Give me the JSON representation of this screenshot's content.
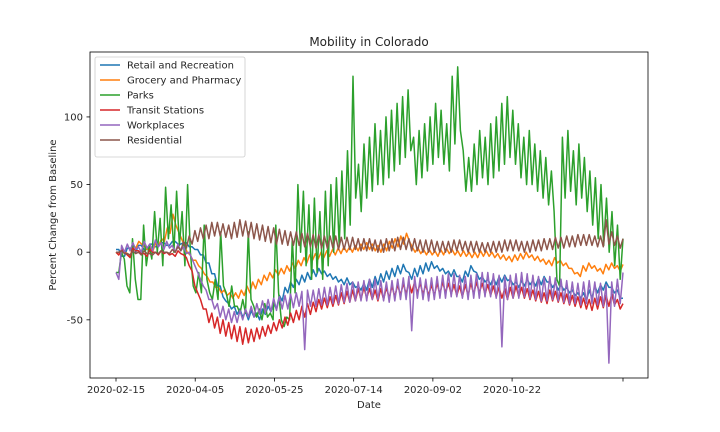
{
  "chart_data": {
    "type": "line",
    "title": "Mobility in Colorado",
    "xlabel": "Date",
    "ylabel": "Percent Change from Baseline",
    "x_start": "2020-02-15",
    "x_end": "2020-12-31",
    "x_ticks": [
      "2020-02-15",
      "2020-04-05",
      "2020-05-25",
      "2020-07-14",
      "2020-09-02",
      "2020-10-22",
      ""
    ],
    "ylim": [
      -93,
      148
    ],
    "y_ticks": [
      -50,
      0,
      50,
      100
    ],
    "grid": false,
    "legend_position": "upper-left",
    "series": [
      {
        "name": "Retail and Recreation",
        "color": "#1f77b4",
        "values": [
          2,
          -3,
          3,
          0,
          5,
          2,
          6,
          4,
          7,
          5,
          8,
          6,
          7,
          4,
          2,
          -2,
          -8,
          -16,
          -25,
          -33,
          -38,
          -40,
          -42,
          -44,
          -43,
          -45,
          -42,
          -40,
          -38,
          -32,
          -26,
          -22,
          -20,
          -17,
          -15,
          -13,
          -12,
          -14,
          -16,
          -18,
          -20,
          -19,
          -22,
          -25,
          -23,
          -20,
          -18,
          -16,
          -14,
          -12,
          -10,
          -9,
          -15,
          -12,
          -10,
          -8,
          -7,
          -10,
          -12,
          -14,
          -13,
          -18,
          -14,
          -10,
          -15,
          -18,
          -20,
          -19,
          -18,
          -17,
          -20,
          -22,
          -21,
          -20,
          -21,
          -19,
          -18,
          -22,
          -23,
          -24,
          -26,
          -28,
          -30,
          -30,
          -28,
          -25,
          -24,
          -22,
          -26,
          -28,
          -34
        ],
        "lows": [
          2,
          -3,
          3,
          0,
          5,
          2,
          6,
          4,
          7,
          5,
          8,
          6,
          7,
          4,
          2,
          -2,
          -8,
          -16,
          -25,
          -36,
          -42,
          -46,
          -48,
          -50,
          -48,
          -50,
          -46,
          -44,
          -42,
          -36,
          -30,
          -26,
          -24,
          -22,
          -20,
          -18,
          -16,
          -18,
          -20,
          -22,
          -24,
          -24,
          -26,
          -28,
          -28,
          -26,
          -24,
          -22,
          -20,
          -18,
          -16,
          -14,
          -20,
          -18,
          -16,
          -14,
          -12,
          -14,
          -16,
          -18,
          -18,
          -22,
          -18,
          -14,
          -20,
          -22,
          -24,
          -24,
          -22,
          -21,
          -24,
          -26,
          -25,
          -24,
          -25,
          -24,
          -22,
          -26,
          -28,
          -28,
          -30,
          -32,
          -34,
          -36,
          -34,
          -30,
          -28,
          -26,
          -30,
          -34,
          -40
        ]
      },
      {
        "name": "Grocery and Pharmacy",
        "color": "#ff7f0e",
        "values": [
          0,
          2,
          -1,
          5,
          8,
          4,
          3,
          7,
          10,
          18,
          28,
          15,
          5,
          -2,
          -6,
          -12,
          -18,
          -22,
          -26,
          -28,
          -30,
          -30,
          -28,
          -25,
          -22,
          -20,
          -17,
          -15,
          -13,
          -12,
          -10,
          -8,
          -6,
          -4,
          -2,
          -1,
          0,
          1,
          2,
          3,
          4,
          4,
          5,
          6,
          7,
          6,
          5,
          6,
          8,
          10,
          12,
          14,
          4,
          3,
          2,
          2,
          1,
          2,
          3,
          2,
          1,
          1,
          0,
          0,
          1,
          1,
          0,
          -1,
          -2,
          -3,
          -2,
          -1,
          0,
          -2,
          -3,
          -5,
          -6,
          -4,
          -6,
          -8,
          -12,
          -15,
          -10,
          -8,
          -10,
          -12,
          -9,
          -8,
          -10,
          -9
        ],
        "lows": [
          -2,
          0,
          -3,
          3,
          6,
          2,
          1,
          5,
          8,
          14,
          20,
          10,
          0,
          -6,
          -10,
          -16,
          -22,
          -26,
          -30,
          -32,
          -34,
          -34,
          -32,
          -30,
          -27,
          -24,
          -21,
          -19,
          -17,
          -16,
          -14,
          -12,
          -10,
          -8,
          -6,
          -5,
          -4,
          -3,
          -2,
          -1,
          0,
          0,
          1,
          2,
          2,
          1,
          0,
          1,
          3,
          4,
          6,
          8,
          0,
          -1,
          -2,
          -2,
          -3,
          -2,
          -1,
          -2,
          -3,
          -3,
          -4,
          -4,
          -3,
          -3,
          -4,
          -5,
          -6,
          -7,
          -6,
          -5,
          -4,
          -6,
          -7,
          -9,
          -10,
          -8,
          -10,
          -12,
          -16,
          -18,
          -14,
          -12,
          -14,
          -16,
          -13,
          -12,
          -14,
          -12
        ]
      },
      {
        "name": "Parks",
        "color": "#2ca02c",
        "values": [
          -15,
          0,
          -25,
          10,
          -35,
          20,
          5,
          30,
          25,
          48,
          35,
          45,
          30,
          50,
          -25,
          -15,
          20,
          -30,
          -20,
          15,
          -30,
          -25,
          -40,
          -35,
          15,
          -40,
          -42,
          -38,
          -45,
          20,
          -50,
          -48,
          10,
          50,
          45,
          35,
          40,
          30,
          45,
          50,
          55,
          60,
          75,
          130,
          65,
          80,
          85,
          95,
          90,
          100,
          105,
          110,
          115,
          120,
          85,
          90,
          95,
          100,
          110,
          105,
          95,
          130,
          137,
          75,
          70,
          80,
          90,
          85,
          95,
          100,
          110,
          115,
          105,
          95,
          85,
          90,
          80,
          75,
          70,
          60,
          -20,
          85,
          90,
          75,
          80,
          70,
          60,
          55,
          50,
          40,
          30,
          20,
          10
        ],
        "lows": [
          -15,
          -5,
          -30,
          -20,
          -35,
          -10,
          -5,
          0,
          -10,
          10,
          0,
          5,
          -10,
          0,
          -30,
          -30,
          -20,
          -35,
          -35,
          -25,
          -40,
          -40,
          -45,
          -45,
          -35,
          -48,
          -50,
          -48,
          -50,
          -30,
          -55,
          -50,
          -30,
          0,
          -10,
          -20,
          -15,
          -20,
          -10,
          0,
          5,
          10,
          20,
          40,
          30,
          40,
          45,
          50,
          50,
          55,
          60,
          65,
          70,
          75,
          50,
          55,
          60,
          65,
          70,
          65,
          60,
          80,
          90,
          45,
          45,
          50,
          55,
          50,
          55,
          60,
          65,
          70,
          65,
          55,
          50,
          50,
          45,
          40,
          35,
          30,
          -25,
          40,
          45,
          35,
          40,
          30,
          20,
          10,
          5,
          0,
          -10,
          -20,
          -30
        ]
      },
      {
        "name": "Transit Stations",
        "color": "#d62728",
        "values": [
          0,
          2,
          -2,
          3,
          1,
          -1,
          2,
          0,
          1,
          0,
          -1,
          1,
          -2,
          -10,
          -25,
          -35,
          -42,
          -45,
          -48,
          -50,
          -52,
          -54,
          -55,
          -56,
          -57,
          -56,
          -55,
          -54,
          -52,
          -50,
          -48,
          -45,
          -43,
          -40,
          -38,
          -37,
          -35,
          -34,
          -33,
          -32,
          -30,
          -29,
          -28,
          -27,
          -26,
          -27,
          -28,
          -27,
          -26,
          -25,
          -24,
          -23,
          -22,
          -22,
          -23,
          -24,
          -24,
          -23,
          -22,
          -23,
          -24,
          -25,
          -24,
          -23,
          -22,
          -23,
          -24,
          -25,
          -26,
          -27,
          -26,
          -25,
          -26,
          -27,
          -28,
          -29,
          -30,
          -28,
          -29,
          -30,
          -31,
          -32,
          -33,
          -34,
          -35,
          -34,
          -33,
          -32,
          -31,
          -35,
          -38
        ],
        "lows": [
          -2,
          0,
          -4,
          1,
          -1,
          -3,
          0,
          -2,
          -1,
          -2,
          -3,
          -1,
          -4,
          -14,
          -30,
          -42,
          -52,
          -56,
          -60,
          -62,
          -64,
          -66,
          -68,
          -67,
          -66,
          -64,
          -62,
          -60,
          -58,
          -56,
          -54,
          -52,
          -50,
          -48,
          -46,
          -44,
          -42,
          -41,
          -40,
          -39,
          -38,
          -37,
          -36,
          -35,
          -34,
          -35,
          -36,
          -35,
          -34,
          -33,
          -32,
          -31,
          -30,
          -30,
          -31,
          -32,
          -32,
          -31,
          -30,
          -31,
          -32,
          -33,
          -32,
          -31,
          -30,
          -31,
          -32,
          -33,
          -34,
          -35,
          -34,
          -33,
          -34,
          -35,
          -36,
          -37,
          -38,
          -36,
          -37,
          -38,
          -39,
          -40,
          -41,
          -42,
          -43,
          -42,
          -41,
          -40,
          -39,
          -42,
          -44
        ]
      },
      {
        "name": "Workplaces",
        "color": "#9467bd",
        "values": [
          -15,
          5,
          6,
          7,
          4,
          8,
          6,
          9,
          7,
          8,
          5,
          6,
          4,
          0,
          -10,
          -20,
          -28,
          -35,
          -38,
          -40,
          -42,
          -44,
          -43,
          -42,
          -40,
          -38,
          -36,
          -35,
          -34,
          -33,
          -32,
          -31,
          -30,
          -29,
          -28,
          -28,
          -27,
          -26,
          -26,
          -25,
          -24,
          -23,
          -22,
          -22,
          -21,
          -20,
          -20,
          -21,
          -22,
          -21,
          -20,
          -19,
          -18,
          -18,
          -19,
          -20,
          -19,
          -18,
          -17,
          -16,
          -16,
          -17,
          -18,
          -17,
          -16,
          -15,
          -15,
          -16,
          -17,
          -18,
          -17,
          -16,
          -15,
          -16,
          -17,
          -18,
          -19,
          -18,
          -19,
          -20,
          -21,
          -22,
          -23,
          -22,
          -21,
          -22,
          -23,
          -24,
          -22,
          -20,
          -15
        ],
        "lows": [
          -20,
          0,
          1,
          2,
          0,
          3,
          1,
          4,
          2,
          3,
          0,
          1,
          -1,
          -5,
          -15,
          -25,
          -35,
          -42,
          -48,
          -50,
          -52,
          -52,
          -50,
          -48,
          -48,
          -46,
          -45,
          -44,
          -43,
          -42,
          -42,
          -41,
          -40,
          -72,
          -40,
          -40,
          -39,
          -39,
          -38,
          -38,
          -37,
          -37,
          -36,
          -36,
          -36,
          -35,
          -35,
          -36,
          -37,
          -36,
          -35,
          -35,
          -58,
          -34,
          -35,
          -36,
          -35,
          -34,
          -34,
          -33,
          -33,
          -34,
          -35,
          -34,
          -34,
          -33,
          -33,
          -34,
          -70,
          -35,
          -34,
          -34,
          -33,
          -34,
          -35,
          -36,
          -36,
          -35,
          -36,
          -37,
          -38,
          -38,
          -39,
          -38,
          -38,
          -39,
          -40,
          -82,
          -40,
          -38,
          -35
        ]
      },
      {
        "name": "Residential",
        "color": "#8c564b",
        "values": [
          0,
          1,
          -1,
          1,
          0,
          1,
          -1,
          0,
          1,
          0,
          2,
          4,
          8,
          12,
          16,
          18,
          20,
          22,
          22,
          21,
          20,
          22,
          24,
          23,
          22,
          21,
          20,
          19,
          18,
          17,
          16,
          15,
          15,
          14,
          14,
          13,
          13,
          12,
          12,
          12,
          11,
          11,
          11,
          10,
          10,
          10,
          9,
          9,
          10,
          10,
          11,
          11,
          10,
          10,
          9,
          9,
          9,
          8,
          8,
          8,
          9,
          9,
          8,
          8,
          8,
          7,
          7,
          8,
          8,
          9,
          9,
          9,
          8,
          8,
          9,
          9,
          10,
          10,
          11,
          11,
          12,
          12,
          13,
          13,
          13,
          12,
          12,
          24,
          15,
          12,
          10
        ],
        "lows": [
          0,
          -1,
          -2,
          -1,
          -2,
          -1,
          -2,
          -1,
          0,
          -1,
          0,
          1,
          3,
          6,
          8,
          10,
          10,
          12,
          12,
          11,
          10,
          11,
          12,
          11,
          10,
          9,
          8,
          7,
          6,
          6,
          5,
          5,
          5,
          4,
          4,
          3,
          3,
          3,
          3,
          2,
          2,
          2,
          2,
          1,
          1,
          1,
          0,
          0,
          1,
          1,
          2,
          2,
          1,
          1,
          0,
          0,
          0,
          0,
          0,
          0,
          1,
          1,
          0,
          0,
          0,
          0,
          0,
          0,
          0,
          1,
          1,
          1,
          0,
          0,
          1,
          1,
          2,
          2,
          3,
          3,
          4,
          4,
          5,
          5,
          5,
          4,
          4,
          6,
          5,
          3,
          2
        ]
      }
    ]
  }
}
